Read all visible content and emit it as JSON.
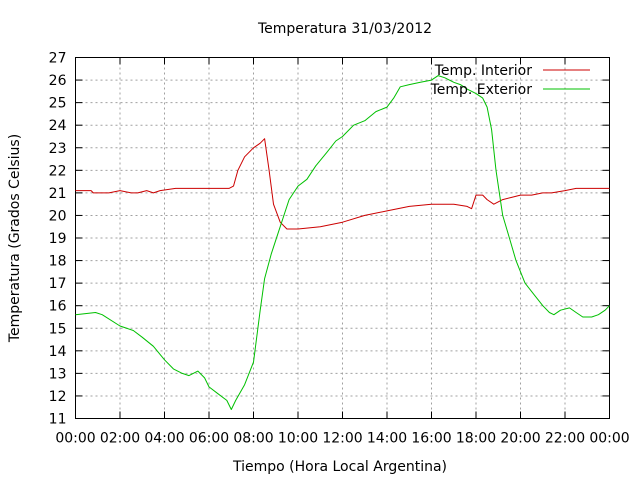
{
  "chart_data": {
    "type": "line",
    "title": "Temperatura 31/03/2012",
    "xlabel": "Tiempo (Hora Local Argentina)",
    "ylabel": "Temperatura (Grados Celsius)",
    "xlim": [
      0,
      24
    ],
    "ylim": [
      11,
      27
    ],
    "x_ticks": [
      {
        "value": 0,
        "label": "00:00"
      },
      {
        "value": 2,
        "label": "02:00"
      },
      {
        "value": 4,
        "label": "04:00"
      },
      {
        "value": 6,
        "label": "06:00"
      },
      {
        "value": 8,
        "label": "08:00"
      },
      {
        "value": 10,
        "label": "10:00"
      },
      {
        "value": 12,
        "label": "12:00"
      },
      {
        "value": 14,
        "label": "14:00"
      },
      {
        "value": 16,
        "label": "16:00"
      },
      {
        "value": 18,
        "label": "18:00"
      },
      {
        "value": 20,
        "label": "20:00"
      },
      {
        "value": 22,
        "label": "22:00"
      },
      {
        "value": 24,
        "label": "00:00"
      }
    ],
    "y_ticks": [
      11,
      12,
      13,
      14,
      15,
      16,
      17,
      18,
      19,
      20,
      21,
      22,
      23,
      24,
      25,
      26,
      27
    ],
    "grid": true,
    "legend": "top-right",
    "series": [
      {
        "name": "Temp. Interior",
        "color": "#cc0000",
        "x": [
          0,
          0.7,
          0.8,
          1.5,
          2.0,
          2.5,
          2.8,
          3.2,
          3.5,
          3.8,
          4.5,
          5.5,
          6.5,
          6.9,
          7.1,
          7.3,
          7.6,
          8.0,
          8.3,
          8.5,
          8.7,
          8.9,
          9.2,
          9.5,
          10.0,
          11.0,
          12.0,
          13.0,
          14.0,
          15.0,
          16.0,
          17.0,
          17.6,
          17.8,
          18.0,
          18.3,
          18.5,
          18.8,
          19.2,
          19.6,
          20.0,
          20.5,
          21.0,
          21.4,
          22.0,
          22.5,
          23.0,
          24.0
        ],
        "y": [
          21.1,
          21.1,
          21.0,
          21.0,
          21.1,
          21.0,
          21.0,
          21.1,
          21.0,
          21.1,
          21.2,
          21.2,
          21.2,
          21.2,
          21.3,
          22.0,
          22.6,
          23.0,
          23.2,
          23.4,
          22.0,
          20.5,
          19.7,
          19.4,
          19.4,
          19.5,
          19.7,
          20.0,
          20.2,
          20.4,
          20.5,
          20.5,
          20.4,
          20.3,
          20.9,
          20.9,
          20.7,
          20.5,
          20.7,
          20.8,
          20.9,
          20.9,
          21.0,
          21.0,
          21.1,
          21.2,
          21.2,
          21.2
        ]
      },
      {
        "name": "Temp. Exterior",
        "color": "#00c000",
        "x": [
          0,
          0.9,
          1.2,
          2.0,
          2.6,
          3.0,
          3.5,
          4.0,
          4.4,
          4.8,
          5.1,
          5.5,
          5.8,
          6.0,
          6.4,
          6.8,
          7.0,
          7.2,
          7.6,
          8.0,
          8.3,
          8.5,
          8.8,
          9.2,
          9.6,
          10.0,
          10.4,
          10.8,
          11.3,
          11.7,
          12.0,
          12.5,
          13.0,
          13.5,
          14.0,
          14.3,
          14.6,
          15.0,
          15.5,
          16.0,
          16.3,
          16.6,
          17.0,
          17.3,
          17.6,
          18.0,
          18.3,
          18.5,
          18.7,
          18.9,
          19.2,
          19.5,
          19.8,
          20.2,
          20.6,
          21.0,
          21.3,
          21.5,
          21.8,
          22.2,
          22.5,
          22.8,
          23.2,
          23.5,
          23.8,
          24.0
        ],
        "y": [
          15.6,
          15.7,
          15.6,
          15.1,
          14.9,
          14.6,
          14.2,
          13.6,
          13.2,
          13.0,
          12.9,
          13.1,
          12.8,
          12.4,
          12.1,
          11.8,
          11.4,
          11.8,
          12.5,
          13.5,
          15.8,
          17.2,
          18.3,
          19.5,
          20.7,
          21.3,
          21.6,
          22.2,
          22.8,
          23.3,
          23.5,
          24.0,
          24.2,
          24.6,
          24.8,
          25.2,
          25.7,
          25.8,
          25.9,
          26.0,
          26.2,
          26.1,
          25.9,
          25.8,
          25.6,
          25.4,
          25.2,
          24.8,
          23.8,
          22.0,
          20.0,
          19.0,
          18.0,
          17.0,
          16.5,
          16.0,
          15.7,
          15.6,
          15.8,
          15.9,
          15.7,
          15.5,
          15.5,
          15.6,
          15.8,
          16.0
        ]
      }
    ]
  }
}
